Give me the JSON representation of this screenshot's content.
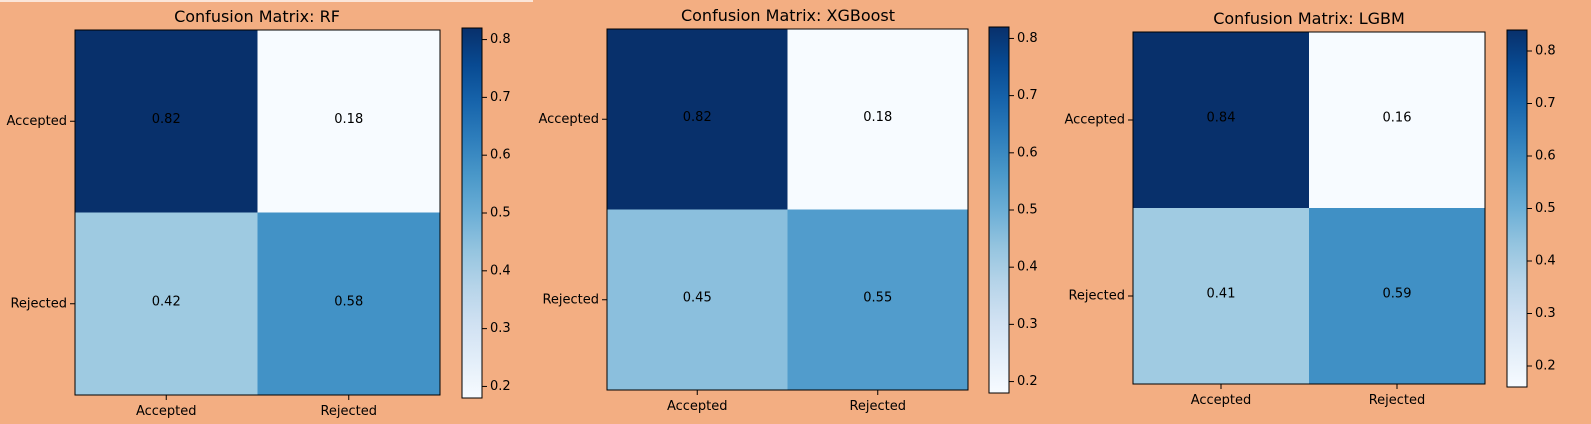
{
  "chart_data": [
    {
      "type": "heatmap",
      "title": "Confusion Matrix: RF",
      "row_labels": [
        "Accepted",
        "Rejected"
      ],
      "col_labels": [
        "Accepted",
        "Rejected"
      ],
      "values": [
        [
          0.82,
          0.18
        ],
        [
          0.42,
          0.58
        ]
      ],
      "colormap": "Blues",
      "vlim": [
        0.18,
        0.82
      ],
      "colorbar_ticks": [
        "0.2",
        "0.3",
        "0.4",
        "0.5",
        "0.6",
        "0.7",
        "0.8"
      ]
    },
    {
      "type": "heatmap",
      "title": "Confusion Matrix: XGBoost",
      "row_labels": [
        "Accepted",
        "Rejected"
      ],
      "col_labels": [
        "Accepted",
        "Rejected"
      ],
      "values": [
        [
          0.82,
          0.18
        ],
        [
          0.45,
          0.55
        ]
      ],
      "colormap": "Blues",
      "vlim": [
        0.18,
        0.82
      ],
      "colorbar_ticks": [
        "0.2",
        "0.3",
        "0.4",
        "0.5",
        "0.6",
        "0.7",
        "0.8"
      ]
    },
    {
      "type": "heatmap",
      "title": "Confusion Matrix: LGBM",
      "row_labels": [
        "Accepted",
        "Rejected"
      ],
      "col_labels": [
        "Accepted",
        "Rejected"
      ],
      "values": [
        [
          0.84,
          0.16
        ],
        [
          0.41,
          0.59
        ]
      ],
      "colormap": "Blues",
      "vlim": [
        0.16,
        0.84
      ],
      "colorbar_ticks": [
        "0.2",
        "0.3",
        "0.4",
        "0.5",
        "0.6",
        "0.7",
        "0.8"
      ]
    }
  ],
  "colors": {
    "background": "#f3ae82",
    "blues_low": "#f7fbff",
    "blues_high": "#08306b"
  }
}
